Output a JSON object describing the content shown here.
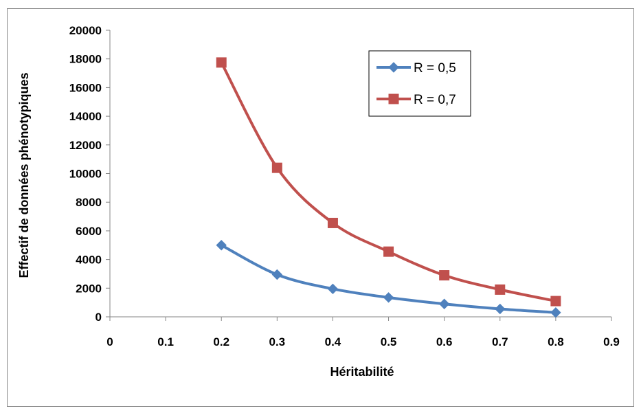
{
  "chart_data": {
    "type": "line",
    "title": "",
    "xlabel": "Héritabilité",
    "ylabel": "Effectif de données phénotypiques",
    "xlim": [
      0,
      0.9
    ],
    "ylim": [
      0,
      20000
    ],
    "x_ticks": [
      "0",
      "0.1",
      "0.2",
      "0.3",
      "0.4",
      "0.5",
      "0.6",
      "0.7",
      "0.8",
      "0.9"
    ],
    "y_ticks": [
      "0",
      "2000",
      "4000",
      "6000",
      "8000",
      "10000",
      "12000",
      "14000",
      "16000",
      "18000",
      "20000"
    ],
    "x": [
      0.2,
      0.3,
      0.4,
      0.5,
      0.6,
      0.7,
      0.8
    ],
    "series": [
      {
        "name": "R = 0,5",
        "values": [
          5000,
          2950,
          1950,
          1350,
          900,
          550,
          300
        ],
        "color": "#4F81BD",
        "marker": "diamond"
      },
      {
        "name": "R = 0,7",
        "values": [
          17750,
          10400,
          6550,
          4550,
          2900,
          1900,
          1100
        ],
        "color": "#C0504D",
        "marker": "square"
      }
    ],
    "grid": false,
    "smooth": true,
    "legend_position": "top-right"
  }
}
